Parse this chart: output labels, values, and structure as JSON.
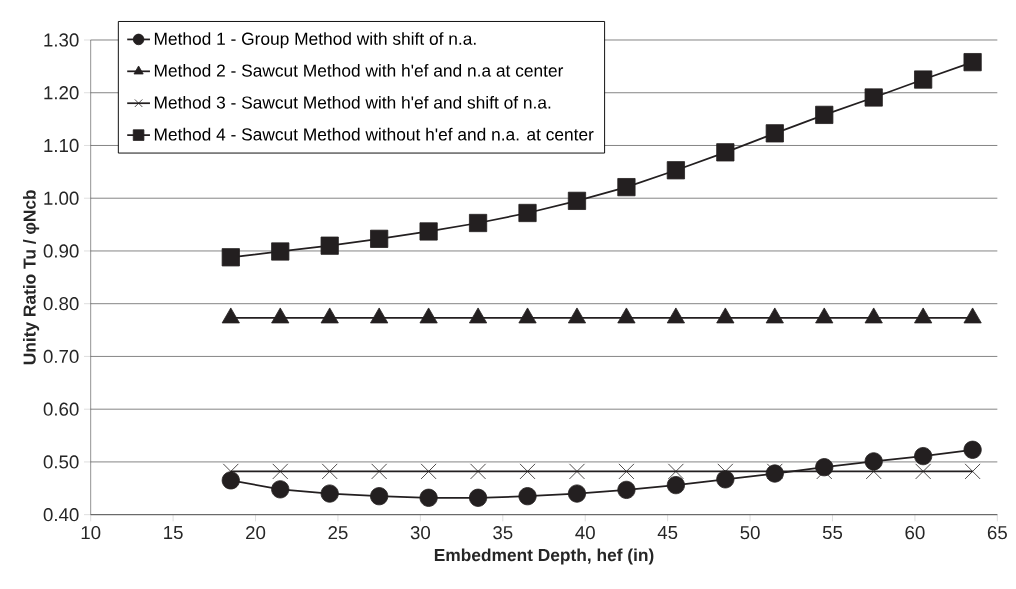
{
  "chart_data": {
    "type": "line",
    "xlabel": "Embedment Depth, hef (in)",
    "ylabel": "Unity Ratio   Tu / φNcb",
    "x": [
      18.5,
      21.5,
      24.5,
      27.5,
      30.5,
      33.5,
      36.5,
      39.5,
      42.5,
      45.5,
      48.5,
      51.5,
      54.5,
      57.5,
      60.5,
      63.5
    ],
    "series": [
      {
        "name": "Method 1 - Group Method with shift of n.a.",
        "color": "#231f20",
        "marker": "circle",
        "values": [
          0.465,
          0.448,
          0.44,
          0.435,
          0.432,
          0.432,
          0.435,
          0.44,
          0.447,
          0.456,
          0.467,
          0.478,
          0.49,
          0.501,
          0.511,
          0.523
        ]
      },
      {
        "name": "Method 2 - Sawcut Method with h'ef and n.a at center",
        "color": "#231f20",
        "marker": "triangle",
        "values": [
          0.773,
          0.773,
          0.773,
          0.773,
          0.773,
          0.773,
          0.773,
          0.773,
          0.773,
          0.773,
          0.773,
          0.773,
          0.773,
          0.773,
          0.773,
          0.773
        ]
      },
      {
        "name": "Method 3 - Sawcut Method  with h'ef and shift of n.a.",
        "color": "#231f20",
        "marker": "cross",
        "values": [
          0.482,
          0.482,
          0.482,
          0.482,
          0.482,
          0.482,
          0.482,
          0.482,
          0.482,
          0.482,
          0.482,
          0.482,
          0.482,
          0.482,
          0.482,
          0.482
        ]
      },
      {
        "name": "Method 4 - Sawcut Method without h'ef and  n.a. at center",
        "color": "#231f20",
        "marker": "square",
        "values": [
          0.888,
          0.899,
          0.91,
          0.923,
          0.937,
          0.953,
          0.972,
          0.995,
          1.021,
          1.053,
          1.087,
          1.123,
          1.158,
          1.191,
          1.225,
          1.258
        ]
      }
    ],
    "xlim": [
      10,
      65
    ],
    "xticks": [
      10,
      15,
      20,
      25,
      30,
      35,
      40,
      45,
      50,
      55,
      60,
      65
    ],
    "ylim": [
      0.4,
      1.3
    ],
    "yticks": [
      {
        "value": 0.4,
        "label": "0.40"
      },
      {
        "value": 0.5,
        "label": "0.50"
      },
      {
        "value": 0.6,
        "label": "0.60"
      },
      {
        "value": 0.7,
        "label": "0.70"
      },
      {
        "value": 0.8,
        "label": "0.80"
      },
      {
        "value": 0.9,
        "label": "0.90"
      },
      {
        "value": 1.0,
        "label": "1.00"
      },
      {
        "value": 1.1,
        "label": "1.10"
      },
      {
        "value": 1.2,
        "label": "1.20"
      },
      {
        "value": 1.3,
        "label": "1.30"
      }
    ],
    "grid": "y",
    "legend": "top left"
  }
}
